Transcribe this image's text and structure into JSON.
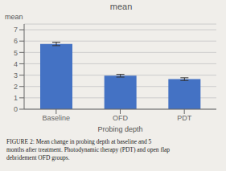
{
  "chart_data": {
    "type": "bar",
    "title": "mean",
    "ylabel": "mean",
    "xlabel": "Probing depth",
    "categories": [
      "Baseline",
      "OFD",
      "PDT"
    ],
    "values": [
      5.75,
      2.95,
      2.65
    ],
    "errors": [
      0.15,
      0.12,
      0.12
    ],
    "color": "#4472C4",
    "ylim": [
      0,
      7.5
    ],
    "yticks": [
      0,
      1,
      2,
      3,
      4,
      5,
      6,
      7
    ],
    "grid": true,
    "caption": "FIGURE 2: Mean change in probing depth at baseline and 5\nmonths after treatment. Photodynamic therapy (PDT) and open flap\ndebridement OFD groups."
  }
}
